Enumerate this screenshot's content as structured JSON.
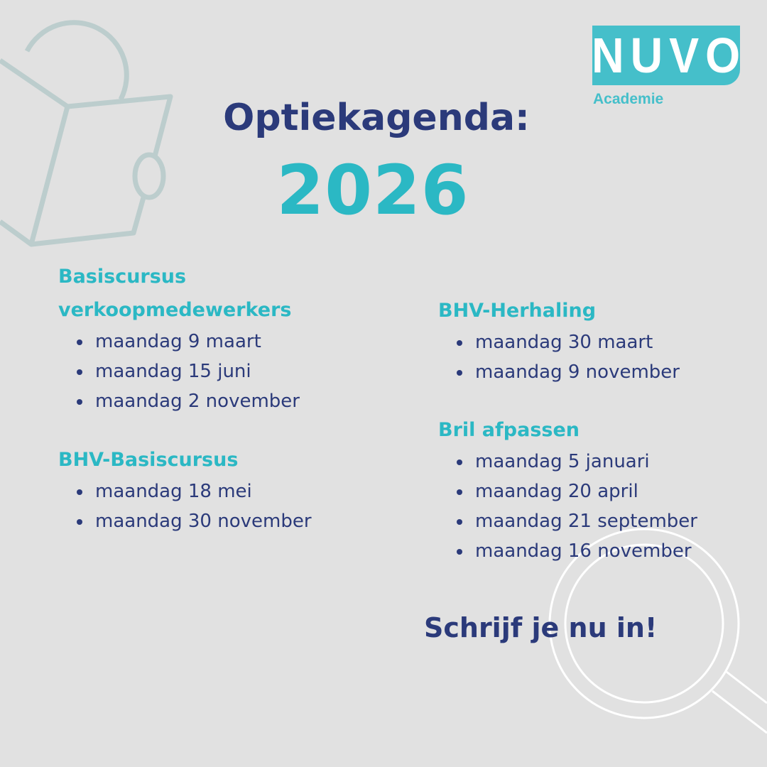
{
  "logo": {
    "name": "NUVO",
    "subtitle": "Academie",
    "color": "#45bfca"
  },
  "header": {
    "title": "Optiekagenda:",
    "year": "2026"
  },
  "colors": {
    "background": "#e1e1e1",
    "navy": "#2b3a7a",
    "teal": "#2bb8c4"
  },
  "sections": [
    {
      "title_line1": "Basiscursus",
      "title_line2": "verkoopmedewerkers",
      "dates": [
        "maandag 9 maart",
        "maandag 15 juni",
        "maandag 2 november"
      ]
    },
    {
      "title": "BHV-Basiscursus",
      "dates": [
        "maandag 18 mei",
        "maandag 30 november"
      ]
    },
    {
      "title": "BHV-Herhaling",
      "dates": [
        "maandag 30 maart",
        "maandag 9 november"
      ]
    },
    {
      "title": "Bril afpassen",
      "dates": [
        "maandag 5 januari",
        "maandag 20 april",
        "maandag 21 september",
        "maandag 16 november"
      ]
    }
  ],
  "cta": "Schrijf je nu in!",
  "decorations": [
    "reading-person-icon",
    "magnifying-glass-icon"
  ]
}
